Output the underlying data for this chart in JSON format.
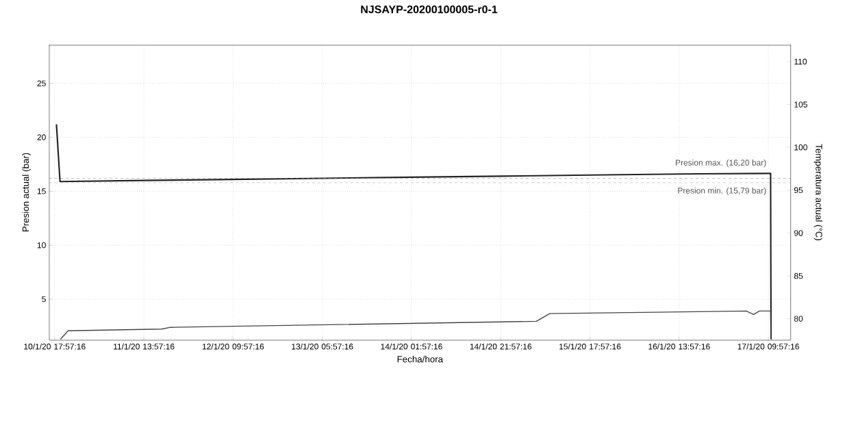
{
  "chart_data": {
    "type": "line",
    "title": "NJSAYP-20200100005-r0-1",
    "xlabel": "Fecha/hora",
    "ylabel": "Presion actual (bar)",
    "y2label": "Temperatura actual (°C)",
    "xlim": [
      "2020-01-10T16:45:16",
      "2020-01-17T14:57:16"
    ],
    "ylim": [
      1.2,
      28.6
    ],
    "y2lim": [
      77.5,
      112
    ],
    "xticks": [
      {
        "value": "2020-01-10T17:57:16",
        "label": "10/1/20 17:57:16"
      },
      {
        "value": "2020-01-11T13:57:16",
        "label": "11/1/20 13:57:16"
      },
      {
        "value": "2020-01-12T09:57:16",
        "label": "12/1/20 09:57:16"
      },
      {
        "value": "2020-01-13T05:57:16",
        "label": "13/1/20 05:57:16"
      },
      {
        "value": "2020-01-14T01:57:16",
        "label": "14/1/20 01:57:16"
      },
      {
        "value": "2020-01-14T21:57:16",
        "label": "14/1/20 21:57:16"
      },
      {
        "value": "2020-01-15T17:57:16",
        "label": "15/1/20 17:57:16"
      },
      {
        "value": "2020-01-16T13:57:16",
        "label": "16/1/20 13:57:16"
      },
      {
        "value": "2020-01-17T09:57:16",
        "label": "17/1/20 09:57:16"
      }
    ],
    "yticks": [
      5,
      10,
      15,
      20,
      25
    ],
    "y2ticks": [
      80,
      85,
      90,
      95,
      100,
      105,
      110
    ],
    "grid": true,
    "marker": "none",
    "line_style": "solid",
    "series": [
      {
        "color": "#222222",
        "x": [
          "2020-01-10T18:21:16",
          "2020-01-10T19:09:16",
          "2020-01-11T13:57:16",
          "2020-01-12T09:57:16",
          "2020-01-13T05:57:16",
          "2020-01-14T01:57:16",
          "2020-01-14T21:57:16",
          "2020-01-15T17:57:16",
          "2020-01-16T13:57:16",
          "2020-01-17T09:57:16",
          "2020-01-17T10:27:16",
          "2020-01-17T10:33:16"
        ],
        "values": [
          21.2,
          15.9,
          16.0,
          16.1,
          16.2,
          16.3,
          16.4,
          16.5,
          16.6,
          16.65,
          16.65,
          1.3
        ]
      },
      {
        "color": "#444444",
        "axis": "y2",
        "x": [
          "2020-01-10T19:15:16",
          "2020-01-10T20:57:16",
          "2020-01-11T17:57:16",
          "2020-01-11T19:57:16",
          "2020-01-15T05:57:16",
          "2020-01-15T08:57:16",
          "2020-01-17T04:57:16",
          "2020-01-17T06:39:16",
          "2020-01-17T07:57:16",
          "2020-01-17T10:27:16",
          "2020-01-17T10:33:16"
        ],
        "values": [
          77.6,
          78.6,
          78.8,
          79.0,
          79.7,
          80.6,
          80.9,
          80.5,
          80.9,
          80.9,
          77.6
        ]
      }
    ],
    "ref_lines": [
      {
        "axis": "y",
        "value": 16.2,
        "label": "Presion max. (16,20 bar)",
        "color": "#888888",
        "line_style": "dashed"
      },
      {
        "axis": "y",
        "value": 15.79,
        "label": "Presion min. (15,79 bar)",
        "color": "#888888",
        "line_style": "dashed"
      }
    ]
  }
}
